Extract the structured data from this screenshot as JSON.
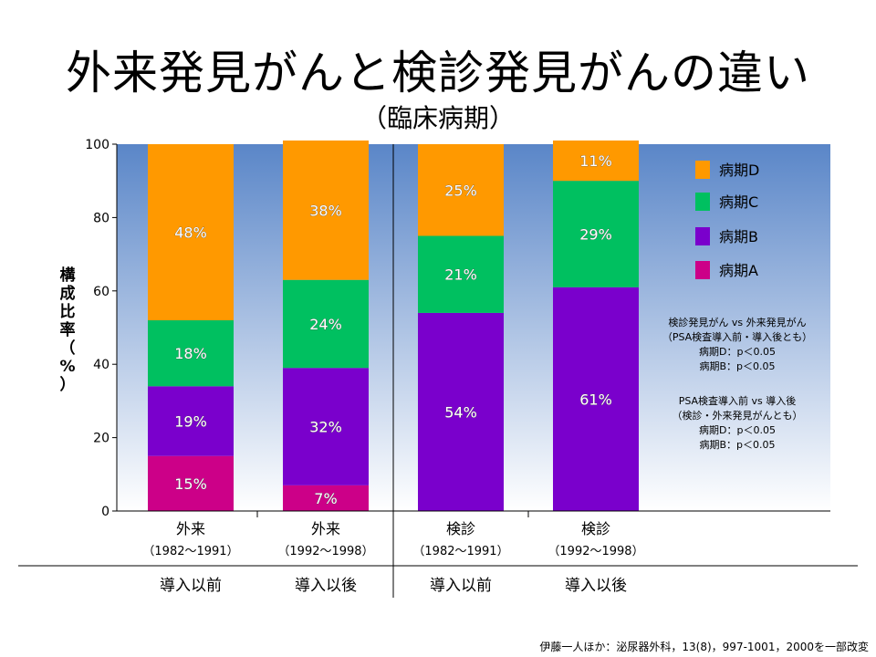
{
  "title": "外来発見がんと検診発見がんの違い",
  "subtitle": "（臨床病期）",
  "ylabel_chars": [
    "構",
    "成",
    "比",
    "率",
    "（",
    "%",
    "）"
  ],
  "citation": "伊藤一人ほか：泌尿器外科，13(8)，997-1001，2000を一部改変",
  "colors": {
    "stageA": "#cc0088",
    "stageB": "#7a00cc",
    "stageC": "#00c060",
    "stageD": "#ff9900",
    "plot_bg_top": "#5a86c8",
    "plot_bg_bottom": "#ffffff"
  },
  "chart_data": {
    "type": "bar",
    "stacked": true,
    "ylim": [
      0,
      100
    ],
    "yticks": [
      "0",
      "20",
      "40",
      "60",
      "80",
      "100"
    ],
    "categories": [
      {
        "label": "外来",
        "period": "（1982〜1991）",
        "group": "導入以前"
      },
      {
        "label": "外来",
        "period": "（1992〜1998）",
        "group": "導入以後"
      },
      {
        "label": "検診",
        "period": "（1982〜1991）",
        "group": "導入以前"
      },
      {
        "label": "検診",
        "period": "（1992〜1998）",
        "group": "導入以後"
      }
    ],
    "series": [
      {
        "name": "病期A",
        "key": "stageA",
        "values": [
          15,
          7,
          0,
          0
        ],
        "labels": [
          "15%",
          "7%",
          "",
          ""
        ]
      },
      {
        "name": "病期B",
        "key": "stageB",
        "values": [
          19,
          32,
          54,
          61
        ],
        "labels": [
          "19%",
          "32%",
          "54%",
          "61%"
        ]
      },
      {
        "name": "病期C",
        "key": "stageC",
        "values": [
          18,
          24,
          21,
          29
        ],
        "labels": [
          "18%",
          "24%",
          "21%",
          "29%"
        ]
      },
      {
        "name": "病期D",
        "key": "stageD",
        "values": [
          48,
          38,
          25,
          11
        ],
        "labels": [
          "48%",
          "38%",
          "25%",
          "11%"
        ]
      }
    ],
    "legend": {
      "placement": "right",
      "order": [
        "病期D",
        "病期C",
        "病期B",
        "病期A"
      ]
    },
    "notes": [
      "検診発見がん vs 外来発見がん",
      "（PSA検査導入前・導入後とも）",
      "病期D：p＜0.05",
      "病期B：p＜0.05",
      "",
      "PSA検査導入前 vs 導入後",
      "（検診・外来発見がんとも）",
      "病期D：p＜0.05",
      "病期B：p＜0.05"
    ]
  }
}
